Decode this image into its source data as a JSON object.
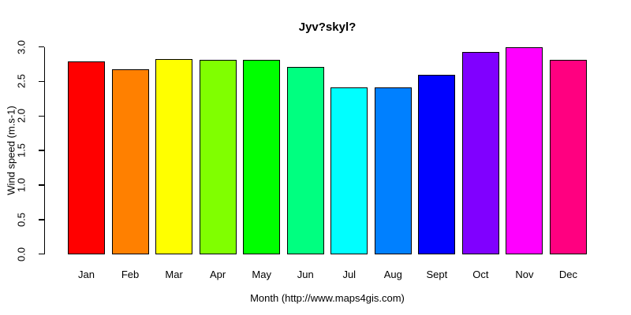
{
  "chart_data": {
    "type": "bar",
    "title": "Jyv?skyl?",
    "xlabel": "Month (http://www.maps4gis.com)",
    "ylabel": "Wind speed (m.s-1)",
    "categories": [
      "Jan",
      "Feb",
      "Mar",
      "Apr",
      "May",
      "Jun",
      "Jul",
      "Aug",
      "Sept",
      "Oct",
      "Nov",
      "Dec"
    ],
    "values": [
      2.79,
      2.68,
      2.82,
      2.81,
      2.81,
      2.71,
      2.41,
      2.41,
      2.6,
      2.93,
      3.0,
      2.81
    ],
    "bar_colors": [
      "#FF0000",
      "#FF8000",
      "#FFFF00",
      "#80FF00",
      "#00FF00",
      "#00FF80",
      "#00FFFF",
      "#0080FF",
      "#0000FF",
      "#8000FF",
      "#FF00FF",
      "#FF0080"
    ],
    "bar_border_color": "#000000",
    "axis_color": "#000000",
    "text_color": "#000000",
    "background": "#FFFFFF",
    "yticks": [
      "0.0",
      "0.5",
      "1.0",
      "1.5",
      "2.0",
      "2.5",
      "3.0"
    ],
    "ylim": [
      0.0,
      3.0
    ],
    "grid": false,
    "legend": null
  }
}
